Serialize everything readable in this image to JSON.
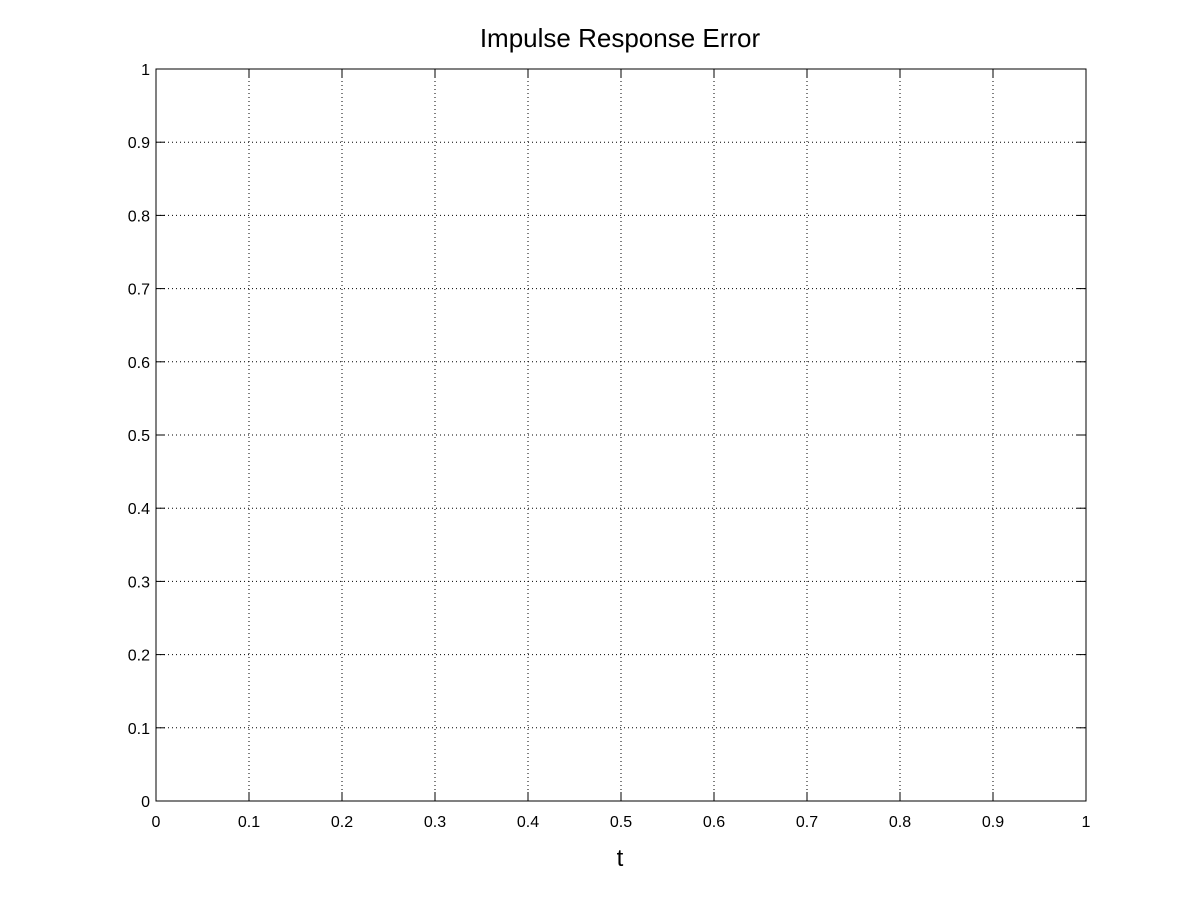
{
  "chart_data": {
    "type": "line",
    "title": "Impulse Response Error",
    "xlabel": "t",
    "ylabel": "",
    "xlim": [
      0,
      1
    ],
    "ylim": [
      0,
      1
    ],
    "xticks": [
      "0",
      "0.1",
      "0.2",
      "0.3",
      "0.4",
      "0.5",
      "0.6",
      "0.7",
      "0.8",
      "0.9",
      "1"
    ],
    "yticks": [
      "0",
      "0.1",
      "0.2",
      "0.3",
      "0.4",
      "0.5",
      "0.6",
      "0.7",
      "0.8",
      "0.9",
      "1"
    ],
    "grid": true,
    "series": []
  }
}
